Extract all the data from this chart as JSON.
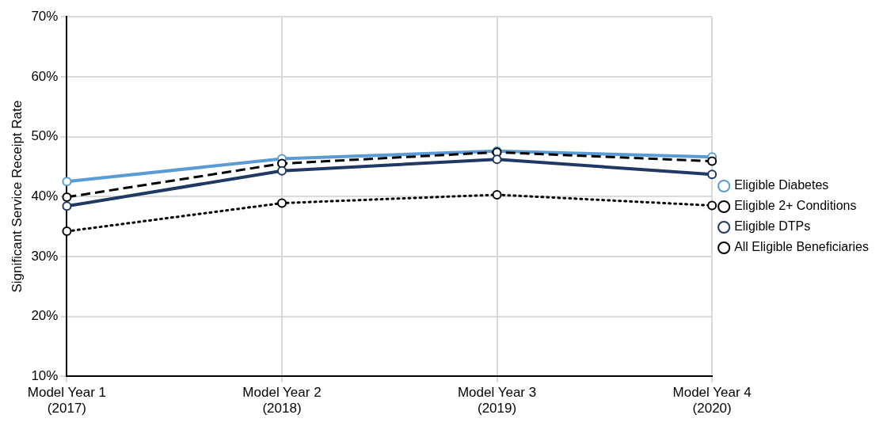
{
  "chart_data": {
    "type": "line",
    "ylabel": "Significant Service Receipt Rate",
    "categories": [
      "Model Year 1\n(2017)",
      "Model Year 2\n(2018)",
      "Model Year 3\n(2019)",
      "Model Year 4\n(2020)"
    ],
    "series": [
      {
        "name": "Eligible Diabetes",
        "color": "#5b9bd5",
        "line_style": "solid",
        "values": [
          42.5,
          46.3,
          47.6,
          46.6
        ]
      },
      {
        "name": "Eligible 2+ Conditions",
        "color": "#000000",
        "line_style": "dashed",
        "values": [
          39.9,
          45.5,
          47.4,
          45.9
        ]
      },
      {
        "name": "Eligible DTPs",
        "color": "#1f3864",
        "line_style": "solid",
        "values": [
          38.4,
          44.3,
          46.2,
          43.7
        ]
      },
      {
        "name": "All Eligible Beneficiaries",
        "color": "#000000",
        "line_style": "dotted",
        "values": [
          34.2,
          38.9,
          40.3,
          38.5
        ]
      }
    ],
    "ylim": [
      10,
      70
    ],
    "yticks": [
      {
        "value": 10,
        "label": "10%"
      },
      {
        "value": 20,
        "label": "20%"
      },
      {
        "value": 30,
        "label": "30%"
      },
      {
        "value": 40,
        "label": "40%"
      },
      {
        "value": 50,
        "label": "50%"
      },
      {
        "value": 60,
        "label": "60%"
      },
      {
        "value": 70,
        "label": "70%"
      }
    ],
    "grid": true,
    "legend": "right",
    "marker": "circle"
  }
}
